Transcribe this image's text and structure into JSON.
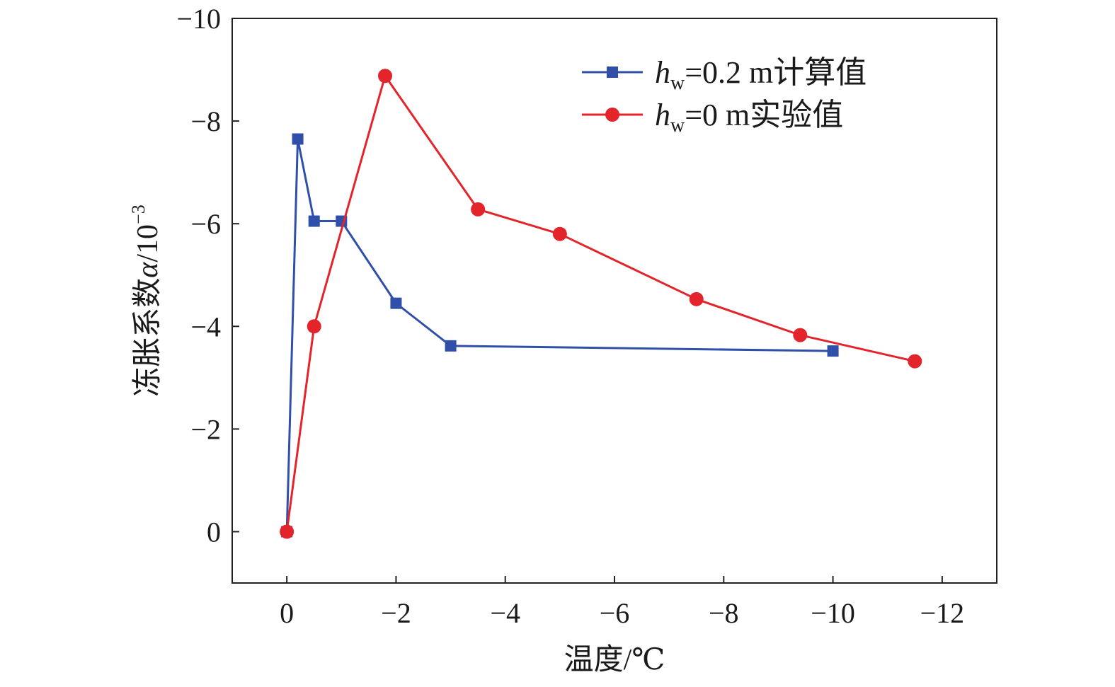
{
  "chart_data": {
    "type": "line",
    "xlabel": "温度/℃",
    "ylabel_prefix": "冻胀系数",
    "ylabel_var": "α",
    "ylabel_unit": "/10",
    "ylabel_exp": "−3",
    "xlim": [
      1,
      -13
    ],
    "ylim": [
      1,
      -10
    ],
    "x_ticks": [
      0,
      -2,
      -4,
      -6,
      -8,
      -10,
      -12
    ],
    "x_tick_labels": [
      "0",
      "−2",
      "−4",
      "−6",
      "−8",
      "−10",
      "−12"
    ],
    "y_ticks": [
      0,
      -2,
      -4,
      -6,
      -8,
      -10
    ],
    "y_tick_labels": [
      "0",
      "−2",
      "−4",
      "−6",
      "−8",
      "−10"
    ],
    "legend_position": "top-right",
    "series": [
      {
        "legend_var": "h",
        "legend_sub": "w",
        "legend_rest": "=0.2 m计算值",
        "color": "#2f4fa8",
        "marker": "square",
        "x": [
          0,
          -0.2,
          -0.5,
          -1.0,
          -2.0,
          -3.0,
          -10.0
        ],
        "y": [
          0,
          -7.65,
          -6.05,
          -6.05,
          -4.45,
          -3.62,
          -3.52
        ]
      },
      {
        "legend_var": "h",
        "legend_sub": "w",
        "legend_rest": "=0 m实验值",
        "color": "#e3242b",
        "marker": "circle",
        "x": [
          0,
          -0.5,
          -1.8,
          -3.5,
          -5.0,
          -7.5,
          -9.4,
          -11.5
        ],
        "y": [
          0,
          -4.0,
          -8.88,
          -6.28,
          -5.8,
          -4.53,
          -3.83,
          -3.32
        ]
      }
    ]
  }
}
